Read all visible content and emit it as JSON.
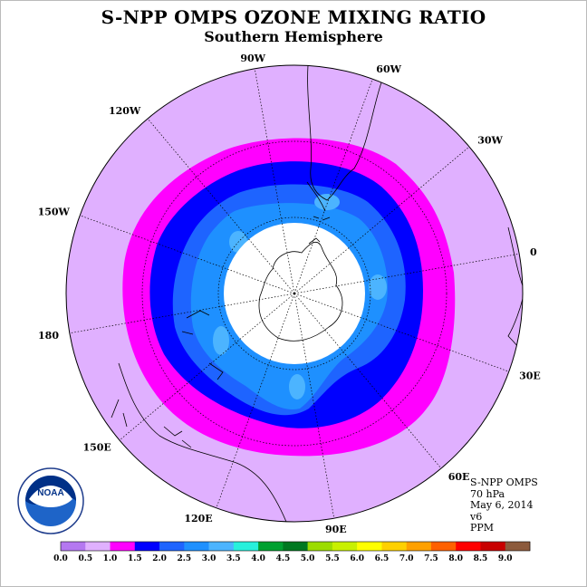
{
  "header": {
    "title": "S-NPP OMPS OZONE MIXING RATIO",
    "subtitle": "Southern Hemisphere"
  },
  "map": {
    "projection": "polar-stereographic-south",
    "longitude_labels": [
      "90W",
      "60W",
      "30W",
      "0",
      "30E",
      "60E",
      "90E",
      "120E",
      "150E",
      "180",
      "150W",
      "120W"
    ],
    "field_colors": {
      "outer": "#e0b0ff",
      "band_1_0_1_5": "#ff00ff",
      "band_1_5_2_0": "#0000ff",
      "band_2_0_2_5": "#1e64ff",
      "band_2_5_3_0": "#1e90ff",
      "band_3_0_3_5": "#4cb4ff",
      "no_data": "#ffffff"
    }
  },
  "info": {
    "instrument": "S-NPP OMPS",
    "level": "70 hPa",
    "date": "May 6, 2014",
    "version": "v6",
    "units": "PPM"
  },
  "colorbar": {
    "ticks": [
      "0.0",
      "0.5",
      "1.0",
      "1.5",
      "2.0",
      "2.5",
      "3.0",
      "3.5",
      "4.0",
      "4.5",
      "5.0",
      "5.5",
      "6.0",
      "6.5",
      "7.0",
      "7.5",
      "8.0",
      "8.5",
      "9.0"
    ],
    "colors": [
      "#b478f0",
      "#e0b0ff",
      "#ff00ff",
      "#0000ff",
      "#1e64ff",
      "#1e90ff",
      "#4cb4ff",
      "#28f0dc",
      "#00a030",
      "#007820",
      "#9cdc00",
      "#c8f000",
      "#ffff00",
      "#ffd000",
      "#ffa000",
      "#ff6000",
      "#ff0000",
      "#c80000"
    ],
    "end_color": "#8c5a3c"
  },
  "logo": {
    "text": "NOAA",
    "ring_text": "NATIONAL OCEANIC AND ATMOSPHERIC ADMINISTRATION · U.S. DEPARTMENT OF COMMERCE"
  }
}
